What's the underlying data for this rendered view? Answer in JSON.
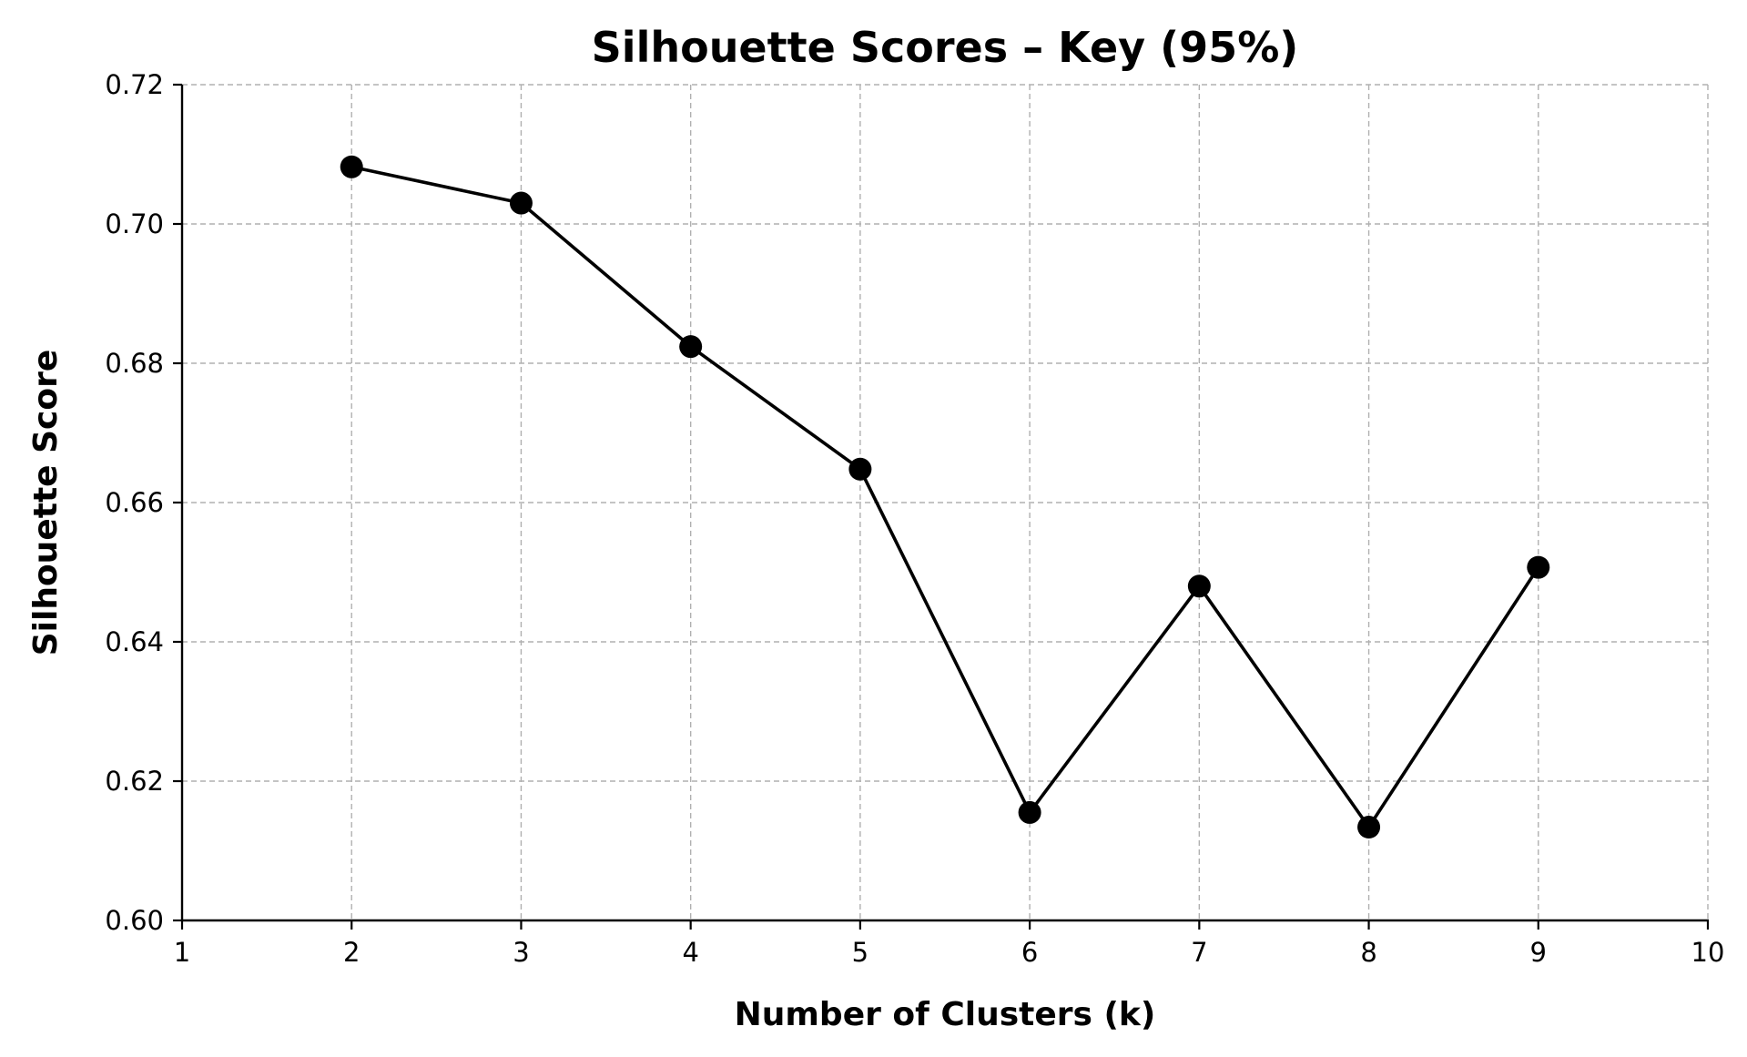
{
  "chart_data": {
    "type": "line",
    "title": "Silhouette Scores – Key (95%)",
    "xlabel": "Number of Clusters (k)",
    "ylabel": "Silhouette Score",
    "xlim": [
      1,
      10
    ],
    "ylim": [
      0.6,
      0.72
    ],
    "x_ticks": [
      1,
      2,
      3,
      4,
      5,
      6,
      7,
      8,
      9,
      10
    ],
    "x_tick_labels": [
      "1",
      "2",
      "3",
      "4",
      "5",
      "6",
      "7",
      "8",
      "9",
      "10"
    ],
    "y_ticks": [
      0.6,
      0.62,
      0.64,
      0.66,
      0.68,
      0.7,
      0.72
    ],
    "y_tick_labels": [
      "0.60",
      "0.62",
      "0.64",
      "0.66",
      "0.68",
      "0.70",
      "0.72"
    ],
    "grid": true,
    "series": [
      {
        "color": "#000000",
        "marker": "circle",
        "x": [
          2,
          3,
          4,
          5,
          6,
          7,
          8,
          9
        ],
        "y": [
          0.7082,
          0.703,
          0.6824,
          0.6648,
          0.6155,
          0.648,
          0.6134,
          0.6507
        ]
      }
    ]
  }
}
